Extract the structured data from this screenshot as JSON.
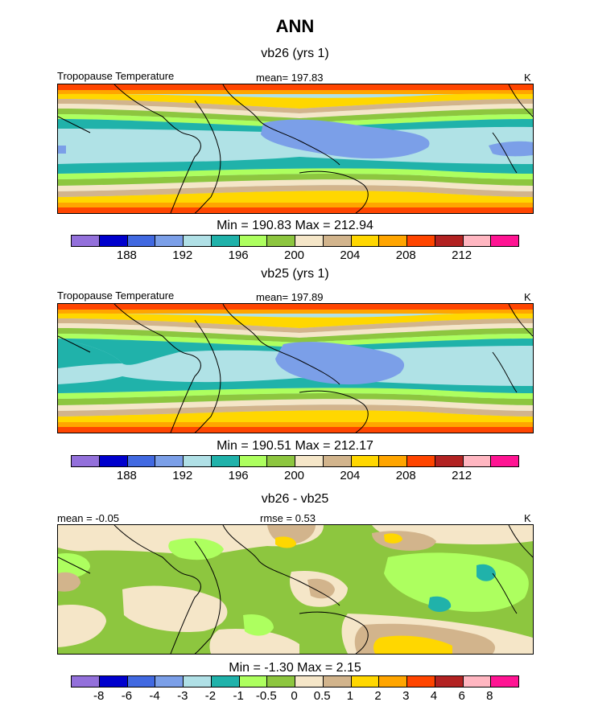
{
  "figure_title": "ANN",
  "colors": {
    "ramp": [
      "#9370DB",
      "#0000CD",
      "#4169E1",
      "#7B9FE8",
      "#B0E0E6",
      "#20B2AA",
      "#ADFF5F",
      "#8DC63F",
      "#F5E6C8",
      "#D2B48C",
      "#FFD700",
      "#FFA500",
      "#FF4500",
      "#B22222",
      "#FFB6C1",
      "#FF1493"
    ],
    "diff_ramp": [
      "#9370DB",
      "#0000CD",
      "#4169E1",
      "#7B9FE8",
      "#B0E0E6",
      "#20B2AA",
      "#ADFF5F",
      "#8DC63F",
      "#F5E6C8",
      "#D2B48C",
      "#FFD700",
      "#FFA500",
      "#FF4500",
      "#B22222",
      "#FFB6C1",
      "#FF1493"
    ]
  },
  "panels": [
    {
      "title": "vb26 (yrs 1)",
      "left_label": "Tropopause Temperature",
      "center_label": "mean= 197.83",
      "units": "K",
      "stats": "Min = 190.83 Max = 212.94"
    },
    {
      "title": "vb25 (yrs 1)",
      "left_label": "Tropopause Temperature",
      "center_label": "mean= 197.89",
      "units": "K",
      "stats": "Min = 190.51 Max = 212.17"
    },
    {
      "title": "vb26 - vb25",
      "left_label": "mean =  -0.05",
      "center_label": "rmse =   0.53",
      "units": "K",
      "stats": "Min =  -1.30 Max =   2.15"
    }
  ],
  "chart_data": [
    {
      "type": "heatmap",
      "title": "vb26 (yrs 1)",
      "field": "Tropopause Temperature",
      "units": "K",
      "mean": 197.83,
      "min": 190.83,
      "max": 212.94,
      "contour_levels": [
        186,
        188,
        190,
        192,
        194,
        196,
        198,
        200,
        202,
        204,
        206,
        208,
        210,
        212,
        214
      ],
      "colorbar_tick_labels": [
        "188",
        "192",
        "196",
        "200",
        "204",
        "208",
        "212"
      ]
    },
    {
      "type": "heatmap",
      "title": "vb25 (yrs 1)",
      "field": "Tropopause Temperature",
      "units": "K",
      "mean": 197.89,
      "min": 190.51,
      "max": 212.17,
      "contour_levels": [
        186,
        188,
        190,
        192,
        194,
        196,
        198,
        200,
        202,
        204,
        206,
        208,
        210,
        212,
        214
      ],
      "colorbar_tick_labels": [
        "188",
        "192",
        "196",
        "200",
        "204",
        "208",
        "212"
      ]
    },
    {
      "type": "heatmap",
      "title": "vb26 - vb25",
      "units": "K",
      "mean": -0.05,
      "rmse": 0.53,
      "min": -1.3,
      "max": 2.15,
      "contour_levels": [
        -8,
        -6,
        -4,
        -3,
        -2,
        -1,
        -0.5,
        0,
        0.5,
        1,
        2,
        3,
        4,
        6,
        8
      ],
      "colorbar_tick_labels": [
        "-8",
        "-6",
        "-4",
        "-3",
        "-2",
        "-1",
        "-0.5",
        "0",
        "0.5",
        "1",
        "2",
        "3",
        "4",
        "6",
        "8"
      ]
    }
  ]
}
